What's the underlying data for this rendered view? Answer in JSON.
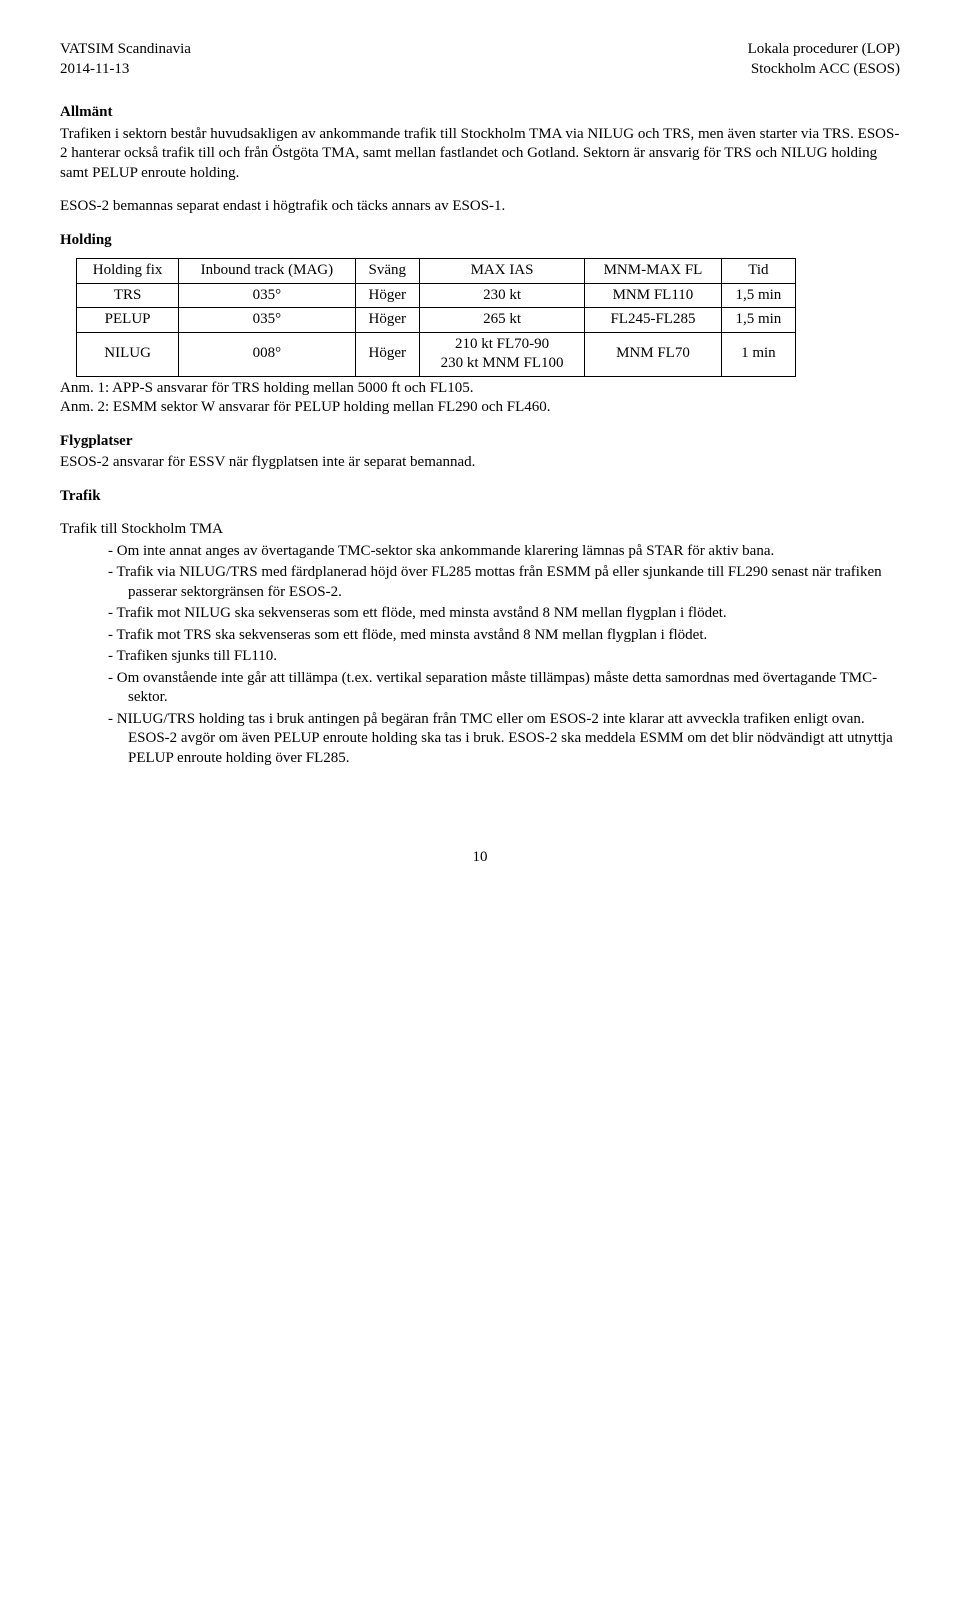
{
  "header": {
    "left_line1": "VATSIM Scandinavia",
    "left_line2": "2014-11-13",
    "right_line1": "Lokala procedurer (LOP)",
    "right_line2": "Stockholm ACC (ESOS)"
  },
  "allmant": {
    "title": "Allmänt",
    "p1": "Trafiken i sektorn består huvudsakligen av ankommande trafik till Stockholm TMA via NILUG och TRS, men även starter via TRS. ESOS-2 hanterar också trafik till och från Östgöta TMA, samt mellan fastlandet och Gotland. Sektorn är ansvarig för TRS och NILUG holding samt PELUP enroute holding.",
    "p2": "ESOS-2 bemannas separat endast i högtrafik och täcks annars av ESOS-1."
  },
  "holding": {
    "title": "Holding",
    "columns": [
      "Holding fix",
      "Inbound track (MAG)",
      "Sväng",
      "MAX IAS",
      "MNM-MAX FL",
      "Tid"
    ],
    "rows": [
      [
        "TRS",
        "035°",
        "Höger",
        "230 kt",
        "MNM FL110",
        "1,5 min"
      ],
      [
        "PELUP",
        "035°",
        "Höger",
        "265 kt",
        "FL245-FL285",
        "1,5 min"
      ],
      [
        "NILUG",
        "008°",
        "Höger",
        "210 kt FL70-90\n230 kt MNM FL100",
        "MNM FL70",
        "1 min"
      ]
    ],
    "note1": "Anm. 1: APP-S ansvarar för TRS holding mellan 5000 ft och FL105.",
    "note2": "Anm. 2: ESMM sektor W ansvarar för PELUP holding mellan FL290 och FL460."
  },
  "flygplatser": {
    "title": "Flygplatser",
    "text": "ESOS-2 ansvarar för ESSV när flygplatsen inte är separat bemannad."
  },
  "trafik": {
    "title": "Trafik",
    "subhead": "Trafik till Stockholm TMA",
    "items": [
      "Om inte annat anges av övertagande TMC-sektor ska ankommande klarering lämnas på STAR för aktiv bana.",
      "Trafik via NILUG/TRS med färdplanerad höjd över FL285 mottas från ESMM på eller sjunkande till FL290 senast när trafiken passerar sektorgränsen för ESOS-2.",
      "Trafik mot NILUG ska sekvenseras som ett flöde, med minsta avstånd 8 NM mellan flygplan i flödet.",
      "Trafik mot TRS ska sekvenseras som ett flöde, med minsta avstånd 8 NM mellan flygplan i flödet.",
      "Trafiken sjunks till FL110.",
      "Om ovanstående inte går att tillämpa (t.ex. vertikal separation måste tillämpas) måste detta samordnas med övertagande TMC-sektor.",
      "NILUG/TRS holding tas i bruk antingen på begäran från TMC eller om ESOS-2 inte klarar att avveckla trafiken enligt ovan. ESOS-2 avgör om även PELUP enroute holding ska tas i bruk. ESOS-2 ska meddela ESMM om det blir nödvändigt att utnyttja PELUP enroute holding över FL285."
    ]
  },
  "page_number": "10"
}
